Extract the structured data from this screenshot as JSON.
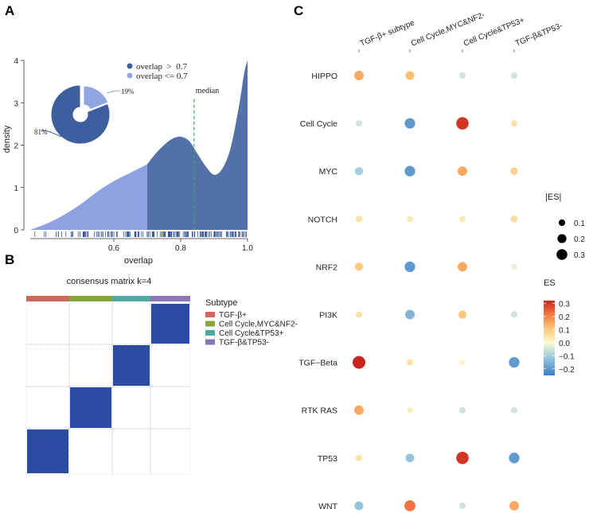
{
  "panels": {
    "a": "A",
    "b": "B",
    "c": "C"
  },
  "colors": {
    "density_low": "#8fa1e0",
    "density_high": "#5470a8",
    "pie_high": "#3d5f9e",
    "pie_low": "#8fa6e0",
    "median_line": "#33b05a",
    "matrix_block": "#2c4ba3",
    "matrix_grid": "#b3b5e0",
    "subtype_colors": [
      "#d1665c",
      "#88a637",
      "#4fa9a5",
      "#8a78b6"
    ]
  },
  "chart_data": [
    {
      "id": "density",
      "type": "area",
      "title": "",
      "xlabel": "overlap",
      "ylabel": "density",
      "xlim": [
        0.35,
        1.0
      ],
      "ylim": [
        0,
        4
      ],
      "x_ticks": [
        0.6,
        0.8,
        1.0
      ],
      "x_tick_labels": [
        "0.6",
        "0.8",
        "1.0"
      ],
      "y_ticks": [
        0,
        1,
        2,
        3,
        4
      ],
      "y_tick_labels": [
        "0",
        "1",
        "2",
        "3",
        "4"
      ],
      "threshold": 0.7,
      "median": 0.84,
      "median_label": "median",
      "x": [
        0.35,
        0.4,
        0.45,
        0.5,
        0.55,
        0.6,
        0.65,
        0.7,
        0.725,
        0.75,
        0.775,
        0.8,
        0.825,
        0.85,
        0.875,
        0.9,
        0.925,
        0.95,
        0.975,
        0.99,
        1.0
      ],
      "y": [
        0.0,
        0.15,
        0.35,
        0.6,
        0.9,
        1.15,
        1.35,
        1.55,
        1.8,
        2.0,
        2.15,
        2.2,
        2.1,
        1.8,
        1.5,
        1.3,
        1.45,
        1.95,
        2.95,
        3.7,
        4.0
      ],
      "rug_description": "rug ticks along the x axis",
      "legend": {
        "entries": [
          "overlap  >  0.7",
          "overlap <= 0.7"
        ],
        "position": "top"
      },
      "pie": {
        "slices": [
          {
            "label": "81%",
            "value": 81
          },
          {
            "label": "19%",
            "value": 19
          }
        ]
      }
    },
    {
      "id": "consensus",
      "type": "heatmap",
      "title": "consensus matrix k=4",
      "legend_title": "Subtype",
      "subtypes": [
        "TGF-β+",
        "Cell Cycle,MYC&NF2-",
        "Cell Cycle&TP53+",
        "TGF-β&TP53-"
      ],
      "column_subtype_order": [
        "TGF-β+",
        "Cell Cycle,MYC&NF2-",
        "Cell Cycle&TP53+",
        "TGF-β&TP53-"
      ],
      "blocks": [
        {
          "subtype": "TGF-β&TP53-",
          "row": 0,
          "col": 3
        },
        {
          "subtype": "Cell Cycle&TP53+",
          "row": 1,
          "col": 2
        },
        {
          "subtype": "Cell Cycle,MYC&NF2-",
          "row": 2,
          "col": 1
        },
        {
          "subtype": "TGF-β+",
          "row": 3,
          "col": 0
        }
      ]
    },
    {
      "id": "dotplot",
      "type": "scatter",
      "columns": [
        "TGF-β+ subtype",
        "Cell Cycle,MYC&NF2-",
        "Cell Cycle&TP53+",
        "TGF-β&TP53-"
      ],
      "rows": [
        "HIPPO",
        "Cell Cycle",
        "MYC",
        "NOTCH",
        "NRF2",
        "PI3K",
        "TGF−Beta",
        "RTK RAS",
        "TP53",
        "WNT"
      ],
      "es": [
        [
          0.15,
          0.12,
          -0.05,
          -0.05
        ],
        [
          -0.05,
          -0.2,
          0.3,
          0.05
        ],
        [
          -0.1,
          -0.2,
          0.15,
          0.08
        ],
        [
          0.05,
          0.04,
          0.04,
          0.06
        ],
        [
          0.1,
          -0.2,
          0.15,
          -0.03
        ],
        [
          0.05,
          -0.15,
          0.1,
          -0.05
        ],
        [
          0.32,
          0.05,
          0.02,
          -0.2
        ],
        [
          0.15,
          0.03,
          -0.05,
          -0.05
        ],
        [
          0.05,
          -0.12,
          0.3,
          -0.2
        ],
        [
          -0.12,
          0.22,
          -0.05,
          0.15
        ]
      ],
      "size_legend": {
        "title": "|ES|",
        "values": [
          0.1,
          0.2,
          0.3
        ],
        "labels": [
          "0.1",
          "0.2",
          "0.3"
        ]
      },
      "color_legend": {
        "title": "ES",
        "range": [
          -0.25,
          0.32
        ],
        "ticks": [
          0.3,
          0.2,
          0.1,
          0.0,
          -0.1,
          -0.2
        ],
        "labels": [
          "0.3",
          "0.2",
          "0.1",
          "0.0",
          "−0.1",
          "−0.2"
        ]
      }
    }
  ]
}
